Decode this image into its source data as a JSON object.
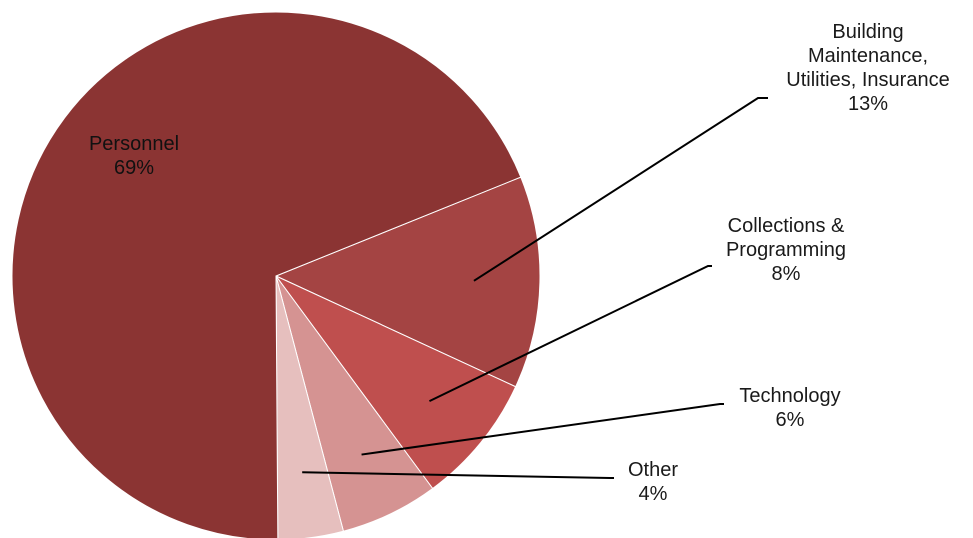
{
  "chart_data": {
    "type": "pie",
    "title": "",
    "start_angle_deg": 68,
    "direction": "clockwise",
    "legend": "none",
    "slices": [
      {
        "name": "Building Maintenance, Utilities, Insurance",
        "label_lines": [
          "Building",
          "Maintenance,",
          "Utilities, Insurance"
        ],
        "value": 13,
        "value_label": "13%",
        "color": "#a44443"
      },
      {
        "name": "Collections & Programming",
        "label_lines": [
          "Collections &",
          "Programming"
        ],
        "value": 8,
        "value_label": "8%",
        "color": "#bf4f4e"
      },
      {
        "name": "Technology",
        "label_lines": [
          "Technology"
        ],
        "value": 6,
        "value_label": "6%",
        "color": "#d59392"
      },
      {
        "name": "Other",
        "label_lines": [
          "Other"
        ],
        "value": 4,
        "value_label": "4%",
        "color": "#e6bfbe"
      },
      {
        "name": "Personnel",
        "label_lines": [
          "Personnel"
        ],
        "value": 69,
        "value_label": "69%",
        "color": "#8b3433"
      }
    ]
  }
}
